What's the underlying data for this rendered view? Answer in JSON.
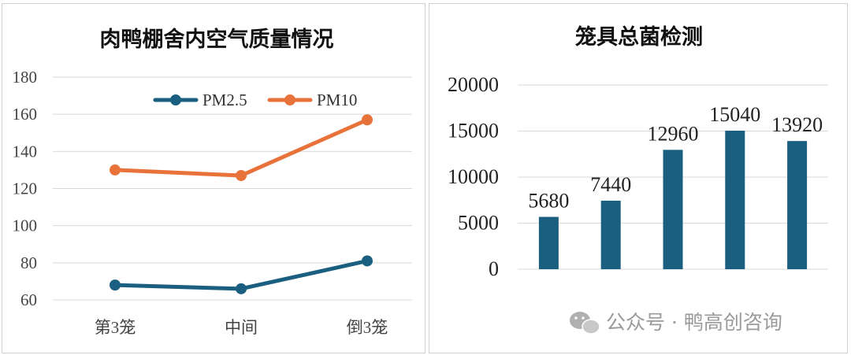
{
  "chart_data": [
    {
      "type": "line",
      "title": "肉鸭棚舍内空气质量情况",
      "categories": [
        "第3笼",
        "中间",
        "倒3笼"
      ],
      "series": [
        {
          "name": "PM2.5",
          "values": [
            68,
            66,
            81
          ],
          "color": "#1b5f80"
        },
        {
          "name": "PM10",
          "values": [
            130,
            127,
            157
          ],
          "color": "#e8733a"
        }
      ],
      "ylim": [
        60,
        180
      ],
      "yticks": [
        60,
        80,
        100,
        120,
        140,
        160,
        180
      ],
      "grid": true,
      "legend": "top-right"
    },
    {
      "type": "bar",
      "title": "笼具总菌检测",
      "categories": [
        "",
        "",
        "",
        "",
        ""
      ],
      "values": [
        5680,
        7440,
        12960,
        15040,
        13920
      ],
      "data_labels": [
        "5680",
        "7440",
        "12960",
        "15040",
        "13920"
      ],
      "color": "#1b5f80",
      "ylim": [
        0,
        20000
      ],
      "yticks": [
        "0",
        "5000",
        "10000",
        "15000",
        "20000"
      ],
      "grid": true
    }
  ],
  "watermark": {
    "icon": "wechat-icon",
    "text": "公众号 · 鸭高创咨询"
  }
}
